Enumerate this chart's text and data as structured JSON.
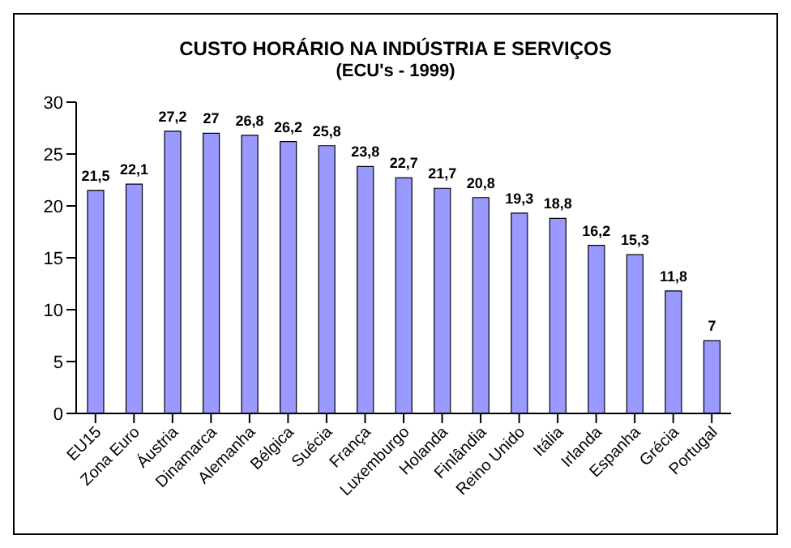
{
  "chart_data": {
    "type": "bar",
    "title": "CUSTO HORÁRIO NA INDÚSTRIA E SERVIÇOS",
    "subtitle": "(ECU's - 1999)",
    "categories": [
      "EU15",
      "Zona Euro",
      "Áustria",
      "Dinamarca",
      "Alemanha",
      "Bélgica",
      "Suécia",
      "França",
      "Luxemburgo",
      "Holanda",
      "Finlândia",
      "Reino Unido",
      "Itália",
      "Irlanda",
      "Espanha",
      "Grécia",
      "Portugal"
    ],
    "values": [
      21.5,
      22.1,
      27.2,
      27,
      26.8,
      26.2,
      25.8,
      23.8,
      22.7,
      21.7,
      20.8,
      19.3,
      18.8,
      16.2,
      15.3,
      11.8,
      7
    ],
    "value_labels": [
      "21,5",
      "22,1",
      "27,2",
      "27",
      "26,8",
      "26,2",
      "25,8",
      "23,8",
      "22,7",
      "21,7",
      "20,8",
      "19,3",
      "18,8",
      "16,2",
      "15,3",
      "11,8",
      "7"
    ],
    "color": "#9999ff",
    "ylim": [
      0,
      30
    ],
    "yticks": [
      0,
      5,
      10,
      15,
      20,
      25,
      30
    ],
    "grid": false,
    "legend": false
  }
}
